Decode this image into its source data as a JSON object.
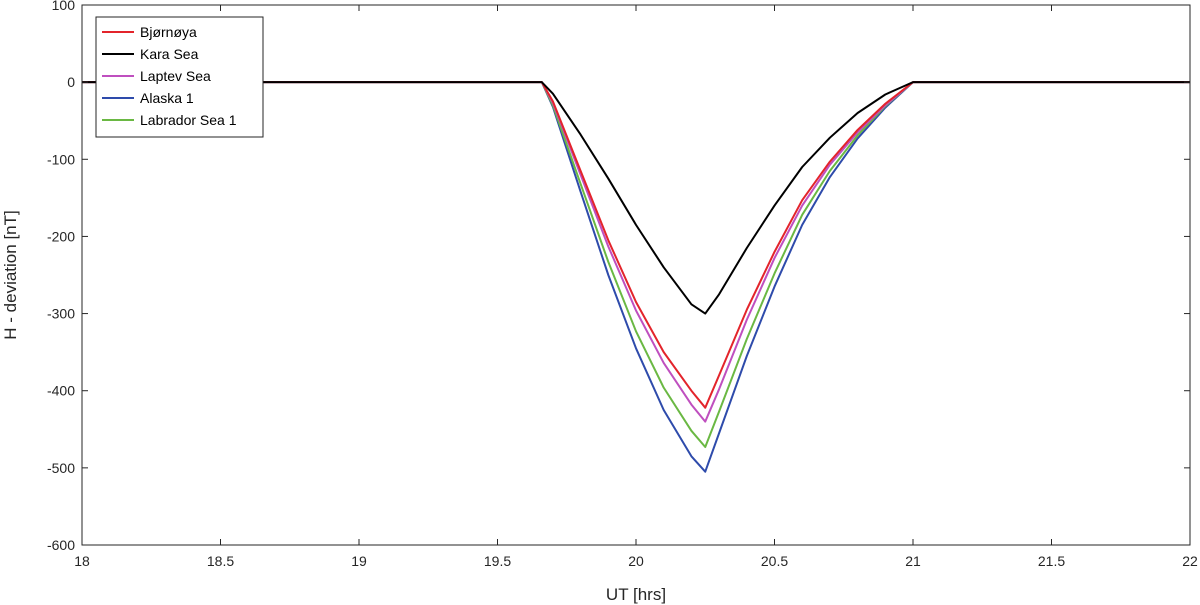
{
  "chart_data": {
    "type": "line",
    "title": "",
    "xlabel": "UT [hrs]",
    "ylabel": "H - deviation [nT]",
    "xlim": [
      18,
      22
    ],
    "ylim": [
      -600,
      100
    ],
    "xticks": [
      18,
      18.5,
      19,
      19.5,
      20,
      20.5,
      21,
      21.5,
      22
    ],
    "xtick_labels": [
      "18",
      "18.5",
      "19",
      "19.5",
      "20",
      "20.5",
      "21",
      "21.5",
      "22"
    ],
    "yticks": [
      100,
      0,
      -100,
      -200,
      -300,
      -400,
      -500,
      -600
    ],
    "ytick_labels": [
      "100",
      "0",
      "-100",
      "-200",
      "-300",
      "-400",
      "-500",
      "-600"
    ],
    "grid": false,
    "legend_position": "top-left",
    "series": [
      {
        "name": "Bjørnøya",
        "color": "#e3242b",
        "x": [
          18,
          19.66,
          19.7,
          19.8,
          19.9,
          20.0,
          20.1,
          20.2,
          20.25,
          20.3,
          20.4,
          20.5,
          20.6,
          20.7,
          20.8,
          20.9,
          21.0,
          22
        ],
        "y": [
          0,
          0,
          -25,
          -115,
          -205,
          -285,
          -350,
          -400,
          -422,
          -380,
          -295,
          -220,
          -153,
          -103,
          -62,
          -28,
          0,
          0
        ]
      },
      {
        "name": "Kara Sea",
        "color": "#000000",
        "x": [
          18,
          19.66,
          19.7,
          19.8,
          19.9,
          20.0,
          20.1,
          20.2,
          20.25,
          20.3,
          20.4,
          20.5,
          20.6,
          20.7,
          20.8,
          20.9,
          21.0,
          22
        ],
        "y": [
          0,
          0,
          -15,
          -68,
          -125,
          -185,
          -240,
          -288,
          -300,
          -275,
          -215,
          -160,
          -110,
          -72,
          -40,
          -16,
          0,
          0
        ]
      },
      {
        "name": "Laptev Sea",
        "color": "#bf4fbf",
        "x": [
          18,
          19.66,
          19.7,
          19.8,
          19.9,
          20.0,
          20.1,
          20.2,
          20.25,
          20.3,
          20.4,
          20.5,
          20.6,
          20.7,
          20.8,
          20.9,
          21.0,
          22
        ],
        "y": [
          0,
          0,
          -27,
          -120,
          -213,
          -296,
          -364,
          -418,
          -440,
          -398,
          -308,
          -228,
          -160,
          -107,
          -65,
          -30,
          0,
          0
        ]
      },
      {
        "name": "Alaska 1",
        "color": "#2e4bab",
        "x": [
          18,
          19.66,
          19.7,
          19.8,
          19.9,
          20.0,
          20.1,
          20.2,
          20.25,
          20.3,
          20.4,
          20.5,
          20.6,
          20.7,
          20.8,
          20.9,
          21.0,
          22
        ],
        "y": [
          0,
          0,
          -32,
          -142,
          -250,
          -345,
          -425,
          -485,
          -505,
          -455,
          -355,
          -265,
          -185,
          -123,
          -73,
          -33,
          0,
          0
        ]
      },
      {
        "name": "Labrador Sea 1",
        "color": "#6ab843",
        "x": [
          18,
          19.66,
          19.7,
          19.8,
          19.9,
          20.0,
          20.1,
          20.2,
          20.25,
          20.3,
          20.4,
          20.5,
          20.6,
          20.7,
          20.8,
          20.9,
          21.0,
          22
        ],
        "y": [
          0,
          0,
          -30,
          -132,
          -233,
          -323,
          -396,
          -452,
          -473,
          -427,
          -333,
          -248,
          -172,
          -115,
          -69,
          -31,
          0,
          0
        ]
      }
    ]
  }
}
